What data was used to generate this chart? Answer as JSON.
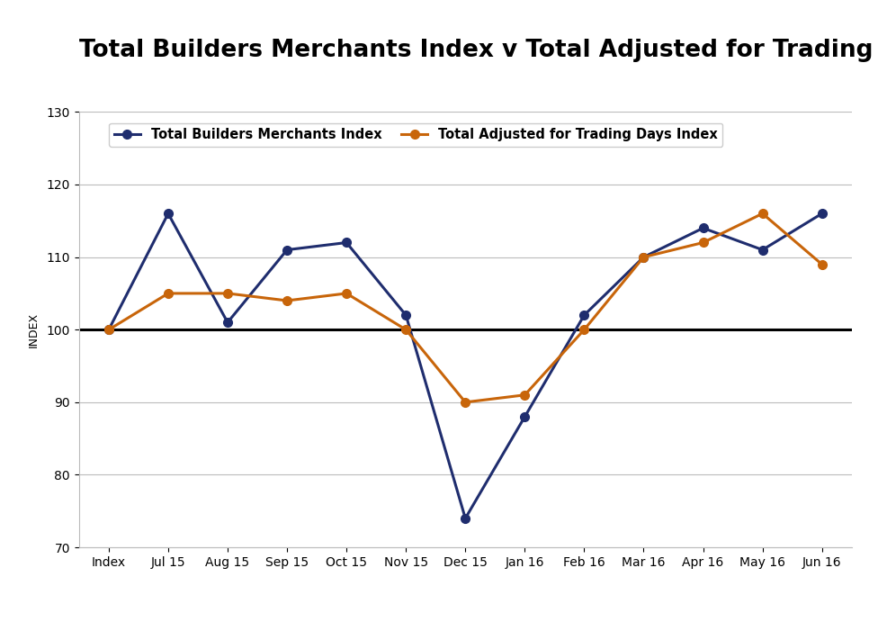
{
  "title": "Total Builders Merchants Index v Total Adjusted for Trading Days Index",
  "ylabel": "INDEX",
  "categories": [
    "Index",
    "Jul 15",
    "Aug 15",
    "Sep 15",
    "Oct 15",
    "Nov 15",
    "Dec 15",
    "Jan 16",
    "Feb 16",
    "Mar 16",
    "Apr 16",
    "May 16",
    "Jun 16"
  ],
  "series1_label": "Total Builders Merchants Index",
  "series1_color": "#1F2D6E",
  "series1_values": [
    100,
    116,
    101,
    111,
    112,
    102,
    74,
    88,
    102,
    110,
    114,
    111,
    116
  ],
  "series2_label": "Total Adjusted for Trading Days Index",
  "series2_color": "#C8650A",
  "series2_values": [
    100,
    105,
    105,
    104,
    105,
    100,
    90,
    91,
    100,
    110,
    112,
    116,
    109
  ],
  "ylim": [
    70,
    130
  ],
  "yticks": [
    70,
    80,
    90,
    100,
    110,
    120,
    130
  ],
  "hline_y": 100,
  "background_color": "#ffffff",
  "title_fontsize": 19,
  "title_fontweight": "bold",
  "legend_fontsize": 10.5,
  "axis_label_fontsize": 9,
  "tick_fontsize": 10,
  "marker": "o",
  "markersize": 7,
  "linewidth": 2.2
}
